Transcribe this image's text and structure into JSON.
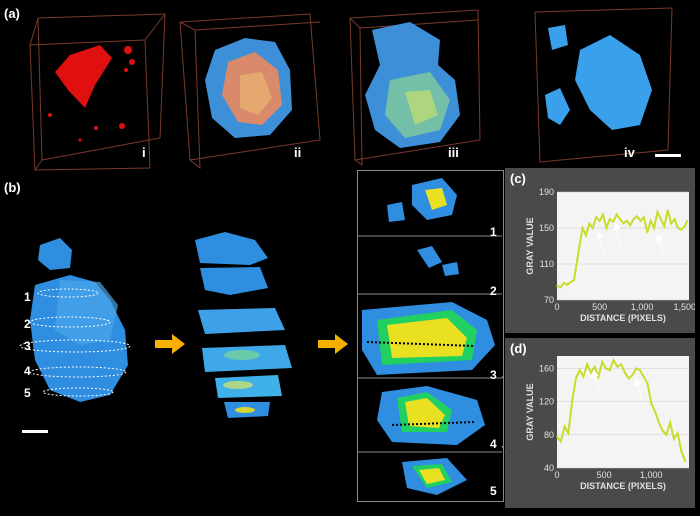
{
  "panels": {
    "a": {
      "label": "(a)",
      "items": [
        "i",
        "ii",
        "iii",
        "iv"
      ]
    },
    "b": {
      "label": "(b)",
      "slice_numbers": [
        "1",
        "2",
        "3",
        "4",
        "5"
      ],
      "right_slice_numbers": [
        "1",
        "2",
        "3",
        "4",
        "5"
      ]
    },
    "c": {
      "label": "(c)"
    },
    "d": {
      "label": "(d)"
    }
  },
  "colors": {
    "red_particle": "#e01010",
    "blue_surface": "#2f9be8",
    "yellow_core": "#e8e020",
    "arrow": "#f5b000",
    "line": "#c8dc2a"
  },
  "chart_data": [
    {
      "type": "line",
      "xlabel": "DISTANCE (PIXELS)",
      "ylabel": "GRAY VALUE",
      "xticks": [
        "0",
        "500",
        "1,000",
        "1,500"
      ],
      "yticks": [
        "70",
        "110",
        "150",
        "190"
      ],
      "xlim": [
        0,
        1550
      ],
      "ylim": [
        70,
        190
      ],
      "x": [
        0,
        40,
        80,
        120,
        160,
        200,
        230,
        260,
        300,
        340,
        380,
        420,
        460,
        500,
        540,
        580,
        620,
        660,
        700,
        740,
        780,
        820,
        860,
        900,
        940,
        980,
        1020,
        1060,
        1100,
        1140,
        1180,
        1220,
        1260,
        1300,
        1340,
        1380,
        1420,
        1460,
        1500,
        1530
      ],
      "values": [
        86,
        84,
        89,
        87,
        90,
        92,
        110,
        128,
        150,
        142,
        155,
        150,
        162,
        158,
        165,
        150,
        160,
        157,
        165,
        160,
        155,
        158,
        153,
        160,
        163,
        158,
        162,
        145,
        158,
        150,
        168,
        160,
        152,
        170,
        155,
        160,
        150,
        148,
        152,
        158
      ]
    },
    {
      "type": "line",
      "xlabel": "DISTANCE (PIXELS)",
      "ylabel": "GRAY VALUE",
      "xticks": [
        "0",
        "500",
        "1,000"
      ],
      "yticks": [
        "40",
        "80",
        "120",
        "160"
      ],
      "xlim": [
        0,
        1400
      ],
      "ylim": [
        40,
        175
      ],
      "x": [
        0,
        40,
        80,
        120,
        160,
        200,
        240,
        280,
        320,
        360,
        400,
        440,
        480,
        520,
        560,
        600,
        640,
        680,
        720,
        760,
        800,
        840,
        880,
        920,
        960,
        1000,
        1040,
        1080,
        1120,
        1160,
        1200,
        1240,
        1280,
        1320,
        1360
      ],
      "values": [
        78,
        72,
        90,
        82,
        120,
        148,
        158,
        150,
        165,
        155,
        162,
        150,
        168,
        160,
        158,
        170,
        162,
        165,
        155,
        148,
        152,
        160,
        158,
        150,
        142,
        118,
        108,
        95,
        85,
        80,
        95,
        75,
        82,
        60,
        48
      ]
    }
  ]
}
